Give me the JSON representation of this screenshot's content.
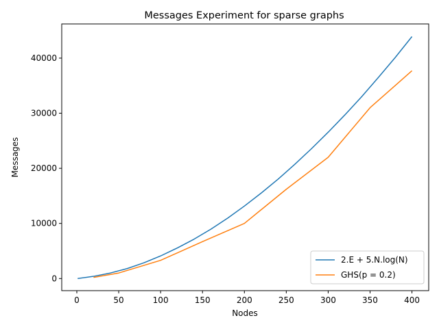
{
  "chart_data": {
    "type": "line",
    "title": "Messages Experiment for sparse graphs",
    "xlabel": "Nodes",
    "ylabel": "Messages",
    "xlim": [
      -18,
      420
    ],
    "ylim": [
      -2200,
      46200
    ],
    "xticks": [
      0,
      50,
      100,
      150,
      200,
      250,
      300,
      350,
      400
    ],
    "yticks": [
      0,
      10000,
      20000,
      30000,
      40000
    ],
    "grid": false,
    "legend_position": "lower-right",
    "series": [
      {
        "name": "2.E + 5.N.log(N)",
        "color": "#1f77b4",
        "x": [
          1,
          20,
          40,
          60,
          80,
          100,
          120,
          140,
          160,
          180,
          200,
          220,
          240,
          260,
          280,
          300,
          320,
          340,
          360,
          380,
          400
        ],
        "y": [
          0,
          400,
          1000,
          1800,
          2850,
          4100,
          5550,
          7150,
          8950,
          10950,
          13150,
          15500,
          18000,
          20700,
          23550,
          26550,
          29700,
          33000,
          36500,
          40100,
          43900
        ]
      },
      {
        "name": "GHS(p = 0.2)",
        "color": "#ff7f0e",
        "x": [
          20,
          50,
          100,
          150,
          200,
          250,
          300,
          350,
          400
        ],
        "y": [
          200,
          1000,
          3300,
          6700,
          10000,
          16200,
          22000,
          31000,
          37700
        ]
      }
    ]
  }
}
